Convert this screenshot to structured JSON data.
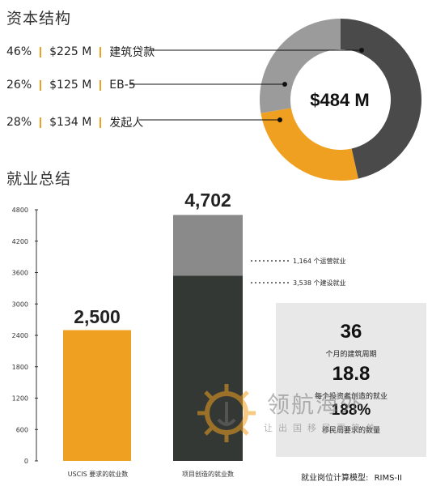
{
  "capital": {
    "title": "资本结构",
    "total": "$484 M",
    "rows": [
      {
        "percent": "46%",
        "amount": "$225 M",
        "label": "建筑贷款"
      },
      {
        "percent": "26%",
        "amount": "$125 M",
        "label": "EB-5"
      },
      {
        "percent": "28%",
        "amount": "$134 M",
        "label": "发起人"
      }
    ],
    "colors": {
      "construction_loan": "#4a4a4a",
      "eb5": "#f0a020",
      "sponsor": "#9b9b9b"
    }
  },
  "employment": {
    "title": "就业总结",
    "uscis_label": "USCIS 要求的就业数",
    "project_label": "项目创造的就业数",
    "uscis_value_text": "2,500",
    "project_value_text": "4,702",
    "annotation_operations": "1,164 个运营就业",
    "annotation_construction": "3,538 个建设就业"
  },
  "stats": [
    {
      "value": "36",
      "label": "个月的建筑周期"
    },
    {
      "value": "18.8",
      "label": "每个投资者创造的就业"
    },
    {
      "value": "188%",
      "label": "移民局要求的数量"
    }
  ],
  "footer": {
    "model_label": "就业岗位计算模型:",
    "model_name": "RIMS-II"
  },
  "watermark": {
    "brand": "领航海外",
    "slogan": "让出国移民更简单"
  },
  "chart_data": [
    {
      "type": "pie",
      "title": "资本结构",
      "center_label": "$484 M",
      "categories": [
        "建筑贷款",
        "EB-5",
        "发起人"
      ],
      "values": [
        225,
        125,
        134
      ],
      "percents": [
        46,
        26,
        28
      ],
      "unit": "$ M",
      "colors": [
        "#4a4a4a",
        "#f0a020",
        "#9b9b9b"
      ]
    },
    {
      "type": "bar",
      "title": "就业总结",
      "categories": [
        "USCIS 要求的就业数",
        "项目创造的就业数"
      ],
      "series": [
        {
          "name": "建设就业",
          "values": [
            2500,
            3538
          ],
          "colors": [
            "#f0a020",
            "#333835"
          ]
        },
        {
          "name": "运营就业",
          "values": [
            0,
            1164
          ],
          "colors": [
            "#f0a020",
            "#8a8a8a"
          ]
        }
      ],
      "ylim": [
        0,
        4800
      ],
      "yticks": [
        0,
        600,
        1200,
        1800,
        2400,
        3000,
        3600,
        4200,
        4800
      ],
      "grid": false
    }
  ]
}
